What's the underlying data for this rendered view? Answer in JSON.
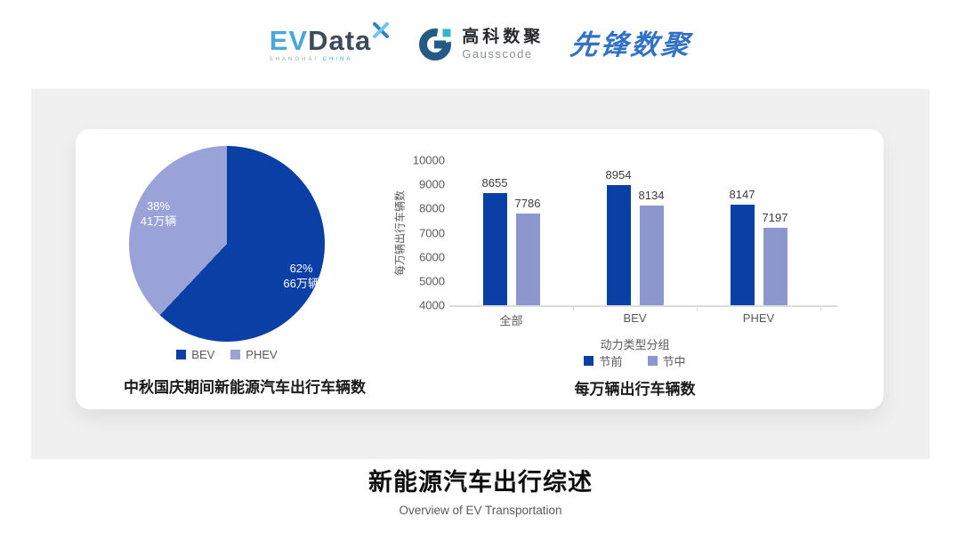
{
  "header": {
    "evdata": {
      "ev": "EV",
      "data": "Data",
      "sub_left": "SHANGHAI",
      "sub_right": "CHINA"
    },
    "gausscode": {
      "cn": "高科数聚",
      "en": "Gausscode"
    },
    "pioneer": {
      "text": "先锋数聚"
    }
  },
  "chart_data": [
    {
      "type": "pie",
      "title": "中秋国庆期间新能源汽车出行车辆数",
      "legend_position": "bottom",
      "start_angle_deg": 0,
      "slices": [
        {
          "label": "BEV",
          "percent": 62,
          "value_label": "66万辆",
          "color": "#0a40a5"
        },
        {
          "label": "PHEV",
          "percent": 38,
          "value_label": "41万辆",
          "color": "#9aa3d8"
        }
      ]
    },
    {
      "type": "bar",
      "title": "每万辆出行车辆数",
      "xlabel": "动力类型分组",
      "ylabel": "每万辆出行车辆数",
      "categories": [
        "全部",
        "BEV",
        "PHEV"
      ],
      "series": [
        {
          "name": "节前",
          "color": "#0a40a5",
          "values": [
            8655,
            8954,
            8147
          ]
        },
        {
          "name": "节中",
          "color": "#8c97ce",
          "values": [
            7786,
            8134,
            7197
          ]
        }
      ],
      "ylim": [
        4000,
        10000
      ],
      "yticks": [
        10000,
        9000,
        8000,
        7000,
        6000,
        5000,
        4000
      ],
      "grid": false,
      "legend_position": "bottom"
    }
  ],
  "footer": {
    "title": "新能源汽车出行综述",
    "subtitle": "Overview of EV Transportation"
  }
}
